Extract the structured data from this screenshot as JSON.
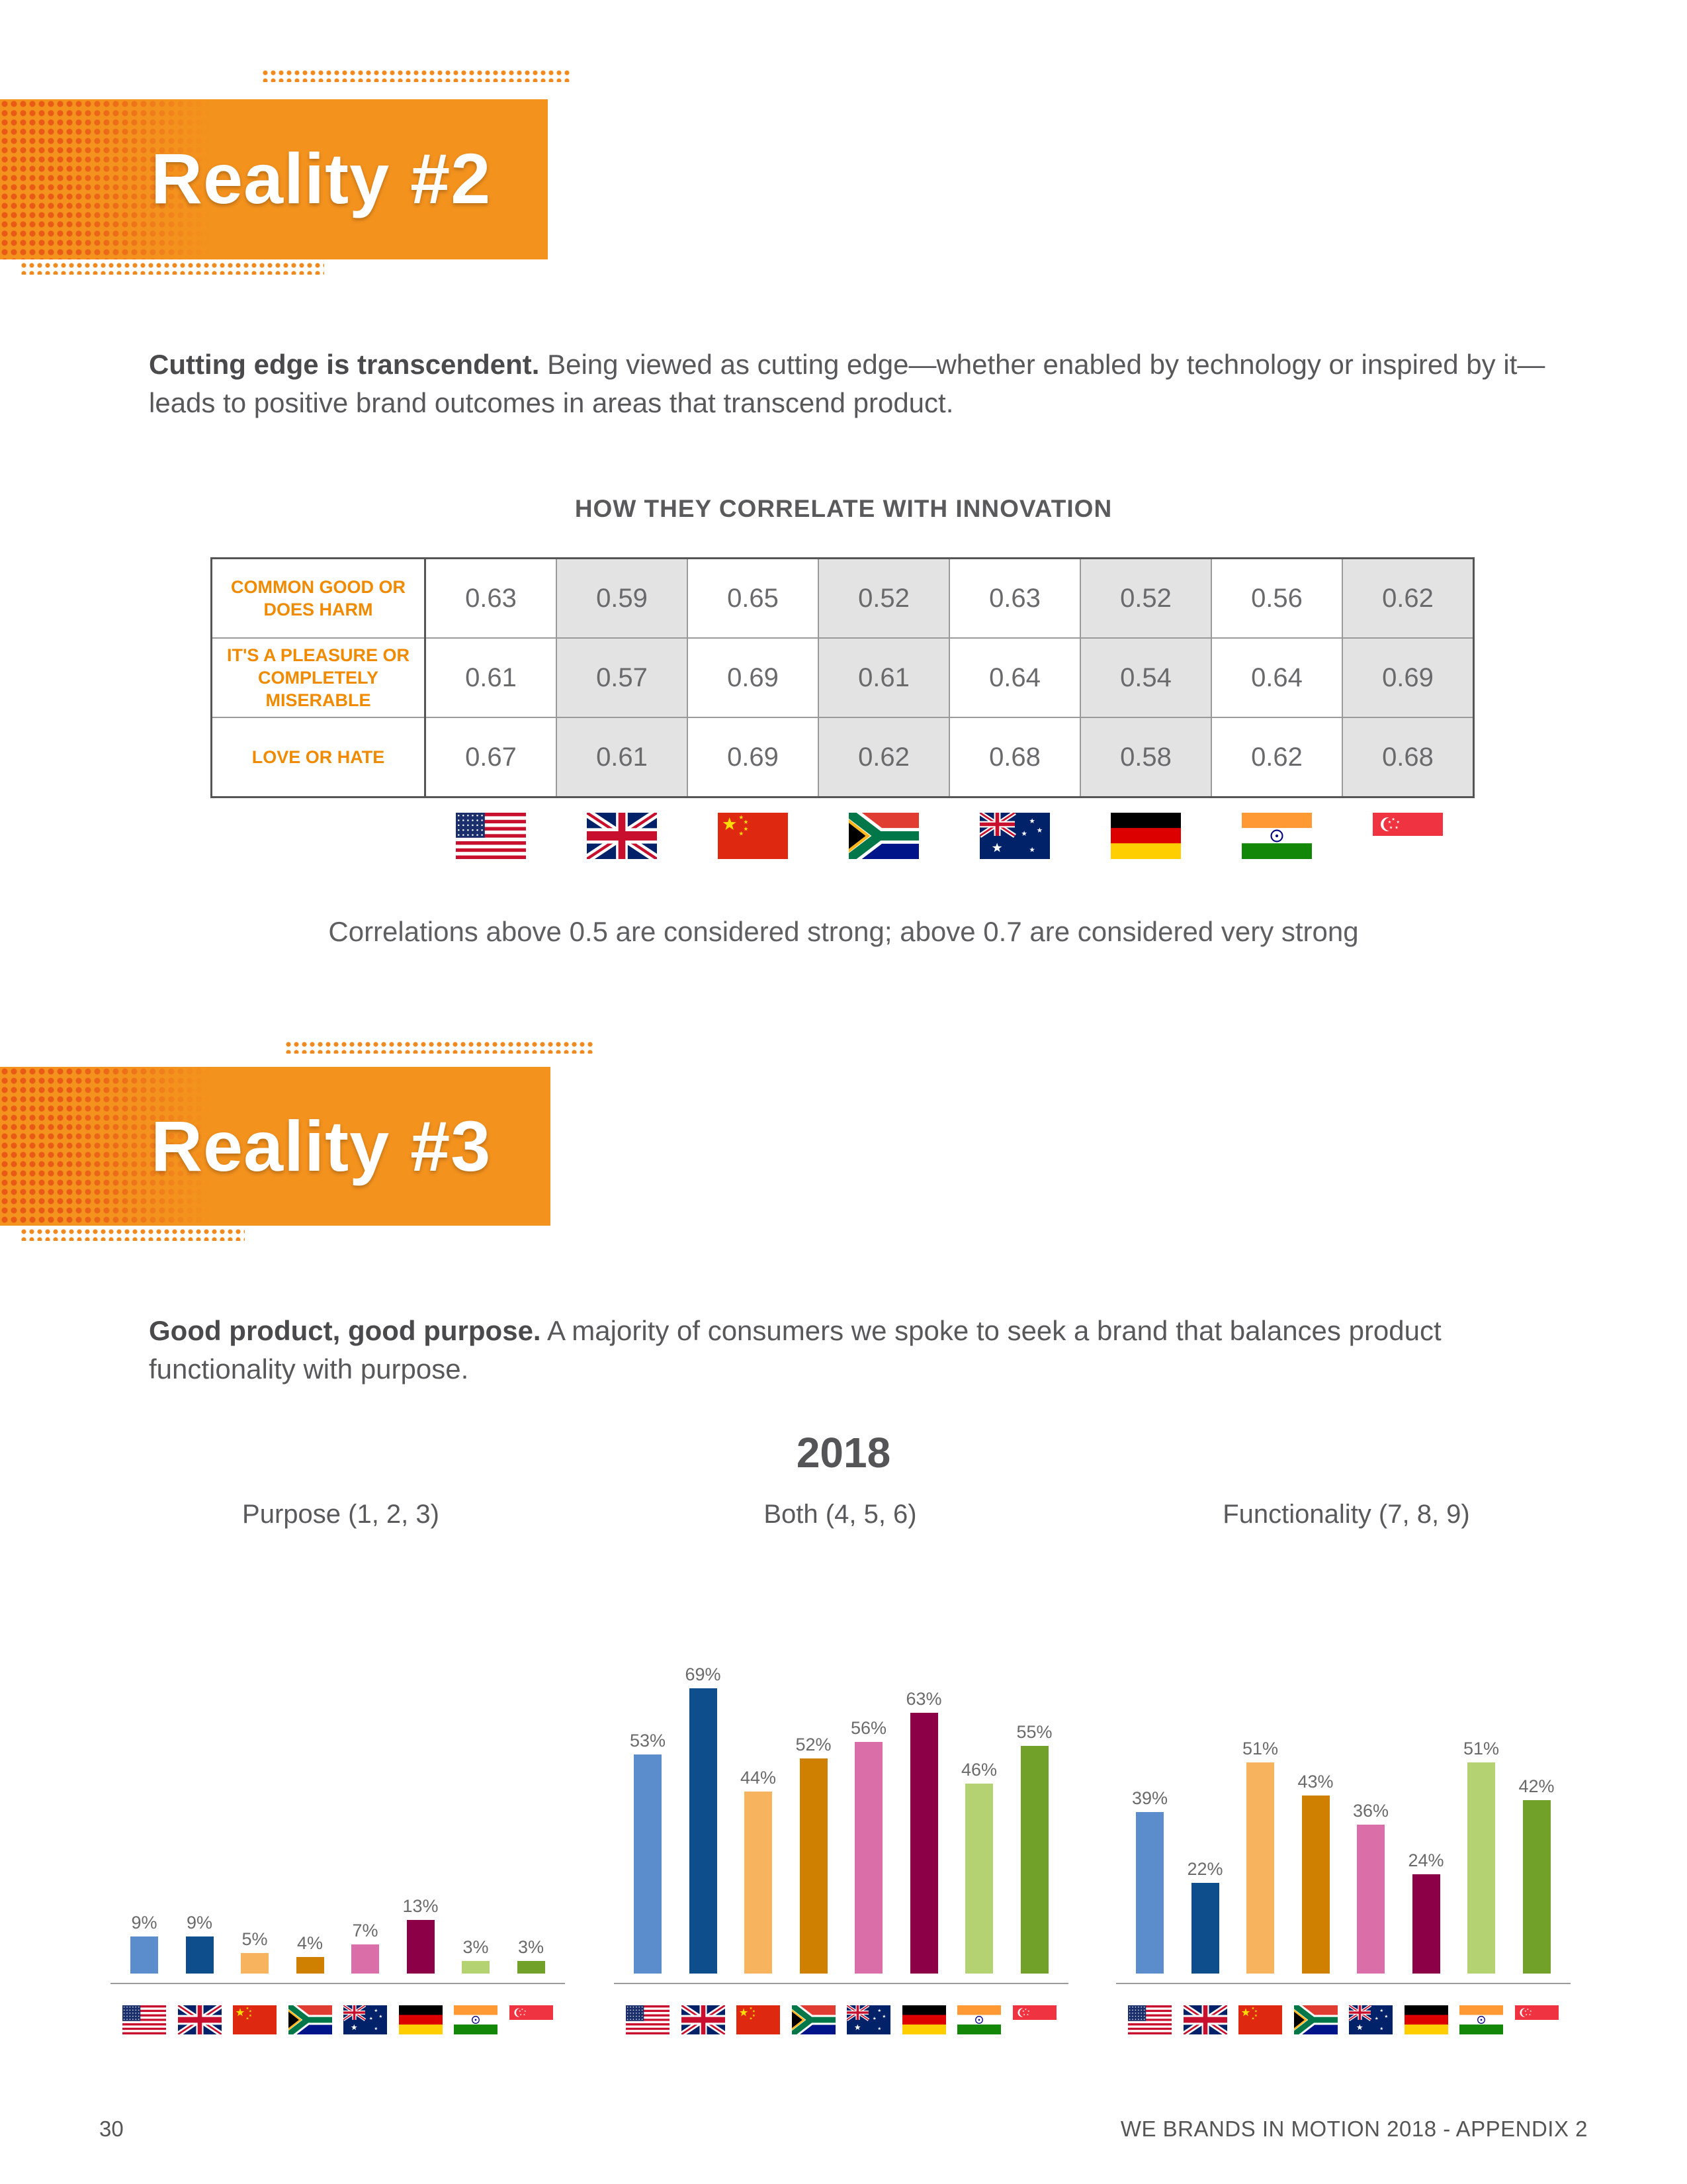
{
  "banner1": {
    "title": "Reality #2"
  },
  "banner2": {
    "title": "Reality #3"
  },
  "section1": {
    "lead": "Cutting edge is transcendent.",
    "body": " Being viewed as cutting edge—whether enabled by technology or inspired by it—leads to positive brand outcomes in areas that transcend product."
  },
  "table": {
    "title": "HOW THEY CORRELATE WITH INNOVATION",
    "rows": [
      {
        "label": "COMMON GOOD OR DOES HARM",
        "values": [
          "0.63",
          "0.59",
          "0.65",
          "0.52",
          "0.63",
          "0.52",
          "0.56",
          "0.62"
        ]
      },
      {
        "label": "IT'S A PLEASURE OR COMPLETELY MISERABLE",
        "values": [
          "0.61",
          "0.57",
          "0.69",
          "0.61",
          "0.64",
          "0.54",
          "0.64",
          "0.69"
        ]
      },
      {
        "label": "LOVE OR HATE",
        "values": [
          "0.67",
          "0.61",
          "0.69",
          "0.62",
          "0.68",
          "0.58",
          "0.62",
          "0.68"
        ]
      }
    ],
    "countries": [
      "us-flag-icon",
      "uk-flag-icon",
      "china-flag-icon",
      "south-africa-flag-icon",
      "australia-flag-icon",
      "germany-flag-icon",
      "india-flag-icon",
      "singapore-flag-icon"
    ],
    "note": "Correlations above 0.5 are considered strong; above 0.7 are considered very strong"
  },
  "section2": {
    "lead": "Good product, good purpose.",
    "body": " A majority of consumers we spoke to seek a brand that balances product functionality with purpose."
  },
  "chart_data": {
    "type": "bar",
    "title": "2018",
    "categories": [
      "US",
      "UK",
      "China",
      "South Africa",
      "Australia",
      "Germany",
      "India",
      "Singapore"
    ],
    "colors": [
      "#5b8ccb",
      "#0f4e8c",
      "#f8b35f",
      "#d08000",
      "#d96ea8",
      "#8b0046",
      "#b5d273",
      "#72a12a"
    ],
    "groups": [
      {
        "name": "Purpose (1, 2, 3)",
        "values": [
          9,
          9,
          5,
          4,
          7,
          13,
          3,
          3
        ]
      },
      {
        "name": "Both (4, 5, 6)",
        "values": [
          53,
          69,
          44,
          52,
          56,
          63,
          46,
          55
        ]
      },
      {
        "name": "Functionality (7, 8, 9)",
        "values": [
          39,
          22,
          51,
          43,
          36,
          24,
          51,
          42
        ]
      }
    ],
    "value_suffix": "%",
    "ylim": [
      0,
      70
    ]
  },
  "footer": {
    "page": "30",
    "publication": "WE BRANDS IN MOTION 2018 - APPENDIX 2"
  }
}
